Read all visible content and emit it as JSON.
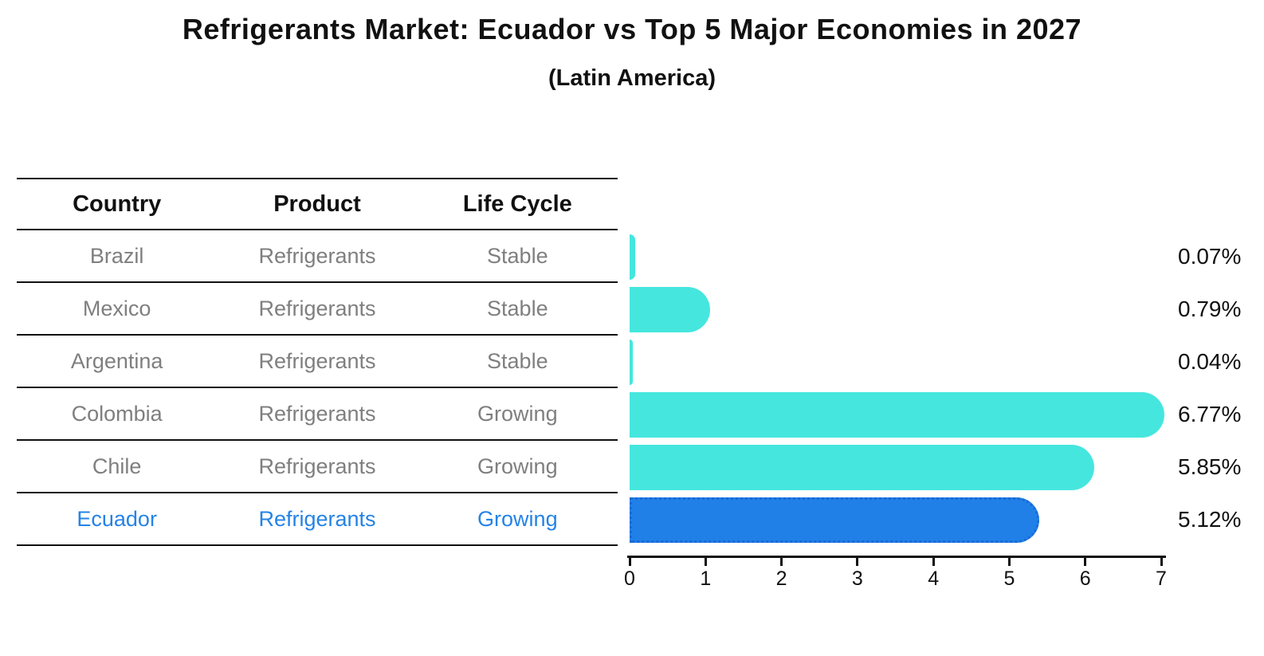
{
  "header": {
    "title": "Refrigerants Market: Ecuador vs Top 5 Major Economies in 2027",
    "subtitle": "(Latin America)"
  },
  "table": {
    "headers": [
      "Country",
      "Product",
      "Life Cycle"
    ],
    "rows": [
      {
        "country": "Brazil",
        "product": "Refrigerants",
        "life_cycle": "Stable",
        "highlighted": false
      },
      {
        "country": "Mexico",
        "product": "Refrigerants",
        "life_cycle": "Stable",
        "highlighted": false
      },
      {
        "country": "Argentina",
        "product": "Refrigerants",
        "life_cycle": "Stable",
        "highlighted": false
      },
      {
        "country": "Colombia",
        "product": "Refrigerants",
        "life_cycle": "Growing",
        "highlighted": false
      },
      {
        "country": "Chile",
        "product": "Refrigerants",
        "life_cycle": "Growing",
        "highlighted": false
      },
      {
        "country": "Ecuador",
        "product": "Refrigerants",
        "life_cycle": "Growing",
        "highlighted": true
      }
    ]
  },
  "chart_data": {
    "type": "bar",
    "orientation": "horizontal",
    "title": "Refrigerants Market: Ecuador vs Top 5 Major Economies in 2027",
    "subtitle": "(Latin America)",
    "categories": [
      "Brazil",
      "Mexico",
      "Argentina",
      "Colombia",
      "Chile",
      "Ecuador"
    ],
    "values": [
      0.07,
      0.79,
      0.04,
      6.77,
      5.85,
      5.12
    ],
    "value_labels": [
      "0.07%",
      "0.79%",
      "0.04%",
      "6.77%",
      "5.85%",
      "5.12%"
    ],
    "xlim": [
      0,
      7
    ],
    "x_ticks": [
      "0",
      "1",
      "2",
      "3",
      "4",
      "5",
      "6",
      "7"
    ],
    "grid": false,
    "legend": false,
    "bar_color": "#45e6de",
    "highlight_bar_color": "#2080e8",
    "highlight_bar_border": "#1a6ad4",
    "highlight_index": 5
  },
  "colors": {
    "text": "#111111",
    "muted_text": "#7f7f7f",
    "highlight_text": "#2583e6",
    "axis": "#111111",
    "background": "#ffffff"
  }
}
